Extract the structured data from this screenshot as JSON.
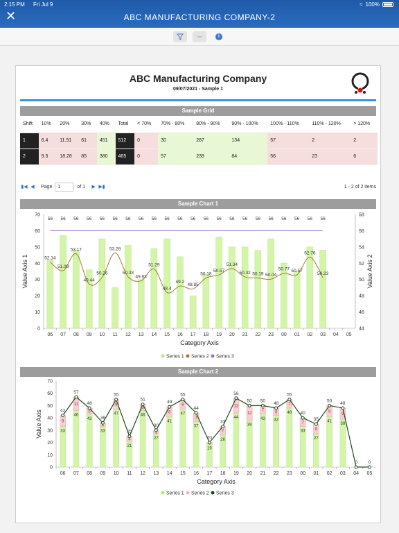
{
  "status": {
    "time": "2:15 PM",
    "date": "Fri Jul 9",
    "battery": "100%"
  },
  "app": {
    "title": "ABC MANUFACTURING COMPANY-2"
  },
  "toolbar": {
    "filter_icon": "filter-icon",
    "minus_icon": "minus-icon",
    "info_icon": "info-icon",
    "info_label": "i"
  },
  "report": {
    "title": "ABC Manufacturing Company",
    "subtitle": "09/07/2021 - Sample 1"
  },
  "grid": {
    "title": "Sample Grid",
    "headers": [
      "Shift",
      "10%",
      "20%",
      "30%",
      "40%",
      "Total",
      "< 70%",
      "70% - 80%",
      "80% - 90%",
      "90% - 100%",
      "100% - 110%",
      "110% - 120%",
      "> 120%"
    ],
    "rows": [
      [
        "1",
        "6.4",
        "11.91",
        "61",
        "451",
        "512",
        "0",
        "30",
        "287",
        "134",
        "57",
        "2",
        "2"
      ],
      [
        "2",
        "9.5",
        "18.28",
        "85",
        "380",
        "465",
        "0",
        "57",
        "239",
        "84",
        "56",
        "23",
        "6"
      ]
    ]
  },
  "pager": {
    "page_label": "Page",
    "page_value": "1",
    "of_label": "of 1",
    "summary": "1 - 2 of 2 items"
  },
  "chart_data": [
    {
      "type": "bar",
      "title": "Sample Chart 1",
      "xlabel": "Category Axis",
      "ylabel": "Value Axis 1",
      "y2label": "Value Axis 2",
      "ylim": [
        0,
        70
      ],
      "y2lim": [
        44,
        58
      ],
      "yticks": [
        0,
        10,
        20,
        30,
        40,
        50,
        60,
        70
      ],
      "y2ticks": [
        44,
        46,
        48,
        50,
        52,
        54,
        56,
        58
      ],
      "categories": [
        "06",
        "07",
        "08",
        "09",
        "10",
        "11",
        "12",
        "13",
        "14",
        "15",
        "16",
        "17",
        "18",
        "19",
        "20",
        "21",
        "22",
        "23",
        "00",
        "01",
        "02",
        "03",
        "04",
        "05"
      ],
      "series": [
        {
          "name": "Series 1",
          "axis": "left",
          "kind": "bar",
          "color": "#d4f5a8",
          "values": [
            42,
            57,
            48,
            36,
            55,
            25,
            51,
            30,
            49,
            55,
            44,
            20,
            33,
            56,
            50,
            50,
            48,
            55,
            40,
            35,
            50,
            48,
            null,
            null
          ]
        },
        {
          "name": "Series 2",
          "axis": "right",
          "kind": "line",
          "color": "#a07a36",
          "values": [
            52.14,
            51.09,
            53.17,
            49.44,
            50.26,
            53.28,
            50.33,
            49.83,
            51.29,
            48.4,
            49.2,
            48.85,
            50.18,
            50.57,
            51.34,
            50.32,
            50.19,
            50.04,
            50.77,
            50.57,
            52.76,
            50.23,
            null,
            null
          ]
        },
        {
          "name": "Series 3",
          "axis": "right",
          "kind": "line",
          "color": "#9a6fc8",
          "values": [
            56,
            56,
            56,
            56,
            56,
            56,
            56,
            56,
            56,
            56,
            56,
            56,
            56,
            56,
            56,
            56,
            56,
            56,
            56,
            56,
            56,
            56,
            null,
            null
          ]
        }
      ],
      "legend": "bottom"
    },
    {
      "type": "bar",
      "title": "Sample Chart 2",
      "xlabel": "Category Axis",
      "ylabel": "Value Axis",
      "ylim": [
        0,
        70
      ],
      "yticks": [
        0,
        10,
        20,
        30,
        40,
        50,
        60,
        70
      ],
      "categories": [
        "06",
        "07",
        "08",
        "09",
        "10",
        "11",
        "12",
        "13",
        "14",
        "15",
        "16",
        "17",
        "18",
        "19",
        "20",
        "21",
        "22",
        "23",
        "00",
        "01",
        "02",
        "03",
        "04",
        "05"
      ],
      "series": [
        {
          "name": "Series 1",
          "kind": "stacked-bar",
          "color": "#d4f5a8",
          "values": [
            33,
            46,
            43,
            33,
            47,
            21,
            46,
            27,
            41,
            47,
            37,
            19,
            26,
            44,
            38,
            43,
            42,
            48,
            33,
            27,
            41,
            39,
            0,
            0
          ]
        },
        {
          "name": "Series 2",
          "kind": "stacked-bar",
          "color": "#f5cfd2",
          "values": [
            9,
            11,
            5,
            3,
            8,
            4,
            5,
            3,
            8,
            8,
            7,
            1,
            7,
            12,
            12,
            7,
            6,
            7,
            7,
            8,
            9,
            9,
            0,
            0
          ]
        },
        {
          "name": "Series 3",
          "kind": "line",
          "color": "#1a4a1a",
          "values": [
            42,
            57,
            48,
            36,
            55,
            25,
            51,
            30,
            49,
            55,
            44,
            20,
            33,
            56,
            50,
            50,
            48,
            55,
            40,
            35,
            50,
            48,
            0,
            0
          ]
        }
      ],
      "legend": "bottom"
    }
  ]
}
